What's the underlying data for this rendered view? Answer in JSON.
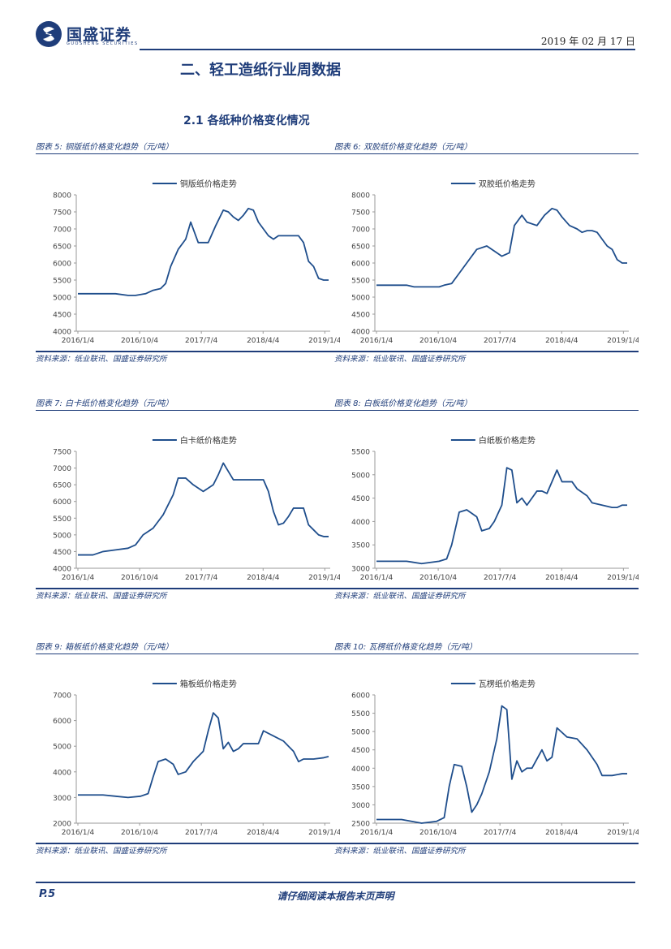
{
  "header": {
    "logo_text": "国盛证券",
    "logo_sub": "GUOSHENG SECURITIES",
    "date": "2019 年 02 月 17 日"
  },
  "section_title": "二、轻工造纸行业周数据",
  "sub_title": "2.1  各纸种价格变化情况",
  "charts": [
    {
      "caption": "图表 5:  铜版纸价格变化趋势（元/吨）",
      "source": "资料来源：纸业联讯、国盛证券研究所"
    },
    {
      "caption": "图表 6:  双胶纸价格变化趋势（元/吨）",
      "source": "资料来源：纸业联讯、国盛证券研究所"
    },
    {
      "caption": "图表 7:  白卡纸价格变化趋势（元/吨）",
      "source": "资料来源：纸业联讯、国盛证券研究所"
    },
    {
      "caption": "图表 8:  白板纸价格变化趋势（元/吨）",
      "source": "资料来源：纸业联讯、国盛证券研究所"
    },
    {
      "caption": "图表 9:  箱板纸价格变化趋势（元/吨）",
      "source": "资料来源：纸业联讯、国盛证券研究所"
    },
    {
      "caption": "图表 10:  瓦楞纸价格变化趋势（元/吨）",
      "source": "资料来源：纸业联讯、国盛证券研究所"
    }
  ],
  "chart_data": [
    {
      "type": "line",
      "title": "铜版纸价格走势",
      "ylim": [
        4000,
        8000
      ],
      "yticks": [
        4000,
        4500,
        5000,
        5500,
        6000,
        6500,
        7000,
        7500,
        8000
      ],
      "xticks": [
        "2016/1/4",
        "2016/10/4",
        "2017/7/4",
        "2018/4/4",
        "2019/1/4"
      ],
      "series": [
        {
          "name": "铜版纸价格走势",
          "x": [
            0,
            0.15,
            0.2,
            0.23,
            0.27,
            0.3,
            0.33,
            0.35,
            0.37,
            0.4,
            0.43,
            0.45,
            0.48,
            0.52,
            0.55,
            0.58,
            0.6,
            0.62,
            0.64,
            0.66,
            0.68,
            0.7,
            0.72,
            0.74,
            0.76,
            0.78,
            0.8,
            0.82,
            0.84,
            0.86,
            0.88,
            0.9,
            0.92,
            0.94,
            0.96,
            0.98,
            1.0
          ],
          "y": [
            5100,
            5100,
            5050,
            5050,
            5100,
            5200,
            5250,
            5400,
            5900,
            6400,
            6700,
            7200,
            6600,
            6600,
            7100,
            7550,
            7500,
            7350,
            7250,
            7400,
            7600,
            7550,
            7200,
            7000,
            6800,
            6700,
            6800,
            6800,
            6800,
            6800,
            6800,
            6600,
            6050,
            5900,
            5550,
            5500,
            5500
          ]
        }
      ]
    },
    {
      "type": "line",
      "title": "双胶纸价格走势",
      "ylim": [
        4000,
        8000
      ],
      "yticks": [
        4000,
        4500,
        5000,
        5500,
        6000,
        6500,
        7000,
        7500,
        8000
      ],
      "xticks": [
        "2016/1/4",
        "2016/10/4",
        "2017/7/4",
        "2018/4/4",
        "2019/1/4"
      ],
      "series": [
        {
          "name": "双胶纸价格走势",
          "x": [
            0,
            0.12,
            0.15,
            0.25,
            0.27,
            0.3,
            0.33,
            0.36,
            0.4,
            0.44,
            0.48,
            0.5,
            0.53,
            0.55,
            0.58,
            0.6,
            0.64,
            0.67,
            0.7,
            0.72,
            0.74,
            0.77,
            0.8,
            0.82,
            0.84,
            0.86,
            0.88,
            0.9,
            0.92,
            0.94,
            0.96,
            0.98,
            1.0
          ],
          "y": [
            5350,
            5350,
            5300,
            5300,
            5350,
            5400,
            5700,
            6000,
            6400,
            6500,
            6300,
            6200,
            6300,
            7100,
            7400,
            7200,
            7100,
            7400,
            7600,
            7550,
            7350,
            7100,
            7000,
            6900,
            6950,
            6950,
            6900,
            6700,
            6500,
            6400,
            6100,
            6000,
            6000
          ]
        }
      ]
    },
    {
      "type": "line",
      "title": "白卡纸价格走势",
      "ylim": [
        4000,
        7500
      ],
      "yticks": [
        4000,
        4500,
        5000,
        5500,
        6000,
        6500,
        7000,
        7500
      ],
      "xticks": [
        "2016/1/4",
        "2016/10/4",
        "2017/7/4",
        "2018/4/4",
        "2019/1/4"
      ],
      "series": [
        {
          "name": "白卡纸价格走势",
          "x": [
            0,
            0.06,
            0.1,
            0.15,
            0.2,
            0.23,
            0.26,
            0.3,
            0.34,
            0.38,
            0.4,
            0.43,
            0.46,
            0.5,
            0.54,
            0.56,
            0.58,
            0.6,
            0.62,
            0.66,
            0.7,
            0.74,
            0.76,
            0.78,
            0.8,
            0.82,
            0.84,
            0.86,
            0.88,
            0.9,
            0.92,
            0.94,
            0.96,
            0.98,
            1.0
          ],
          "y": [
            4400,
            4400,
            4500,
            4550,
            4600,
            4700,
            5000,
            5200,
            5600,
            6200,
            6700,
            6700,
            6500,
            6300,
            6500,
            6800,
            7150,
            6900,
            6650,
            6650,
            6650,
            6650,
            6300,
            5700,
            5300,
            5350,
            5550,
            5800,
            5800,
            5800,
            5300,
            5150,
            5000,
            4950,
            4950
          ]
        }
      ]
    },
    {
      "type": "line",
      "title": "白纸板价格走势",
      "ylim": [
        3000,
        5500
      ],
      "yticks": [
        3000,
        3500,
        4000,
        4500,
        5000,
        5500
      ],
      "xticks": [
        "2016/1/4",
        "2016/10/4",
        "2017/7/4",
        "2018/4/4",
        "2019/1/4"
      ],
      "series": [
        {
          "name": "白纸板价格走势",
          "x": [
            0,
            0.12,
            0.18,
            0.25,
            0.28,
            0.3,
            0.33,
            0.36,
            0.4,
            0.42,
            0.45,
            0.47,
            0.5,
            0.52,
            0.54,
            0.56,
            0.58,
            0.6,
            0.62,
            0.64,
            0.66,
            0.68,
            0.72,
            0.74,
            0.76,
            0.78,
            0.8,
            0.84,
            0.86,
            0.9,
            0.94,
            0.96,
            0.98,
            1.0
          ],
          "y": [
            3150,
            3150,
            3100,
            3150,
            3200,
            3500,
            4200,
            4250,
            4100,
            3800,
            3850,
            4000,
            4350,
            5150,
            5100,
            4400,
            4500,
            4350,
            4500,
            4650,
            4650,
            4600,
            5100,
            4850,
            4850,
            4850,
            4700,
            4550,
            4400,
            4350,
            4300,
            4300,
            4350,
            4350
          ]
        }
      ]
    },
    {
      "type": "line",
      "title": "箱板纸价格走势",
      "ylim": [
        2000,
        7000
      ],
      "yticks": [
        2000,
        3000,
        4000,
        5000,
        6000,
        7000
      ],
      "xticks": [
        "2016/1/4",
        "2016/10/4",
        "2017/7/4",
        "2018/4/4",
        "2019/1/4"
      ],
      "series": [
        {
          "name": "箱板纸价格走势",
          "x": [
            0,
            0.1,
            0.15,
            0.2,
            0.25,
            0.28,
            0.3,
            0.32,
            0.35,
            0.38,
            0.4,
            0.43,
            0.46,
            0.5,
            0.52,
            0.54,
            0.56,
            0.58,
            0.6,
            0.62,
            0.64,
            0.66,
            0.7,
            0.72,
            0.74,
            0.78,
            0.82,
            0.84,
            0.86,
            0.88,
            0.9,
            0.94,
            0.98,
            1.0
          ],
          "y": [
            3100,
            3100,
            3050,
            3000,
            3050,
            3150,
            3800,
            4400,
            4500,
            4300,
            3900,
            4000,
            4400,
            4800,
            5600,
            6300,
            6100,
            4900,
            5150,
            4800,
            4900,
            5100,
            5100,
            5100,
            5600,
            5400,
            5200,
            5000,
            4800,
            4400,
            4500,
            4500,
            4550,
            4600
          ]
        }
      ]
    },
    {
      "type": "line",
      "title": "瓦楞纸价格走势",
      "ylim": [
        2500,
        6000
      ],
      "yticks": [
        2500,
        3000,
        3500,
        4000,
        4500,
        5000,
        5500,
        6000
      ],
      "xticks": [
        "2016/1/4",
        "2016/10/4",
        "2017/7/4",
        "2018/4/4",
        "2019/1/4"
      ],
      "series": [
        {
          "name": "瓦楞纸价格走势",
          "x": [
            0,
            0.1,
            0.14,
            0.18,
            0.24,
            0.27,
            0.29,
            0.31,
            0.34,
            0.36,
            0.38,
            0.4,
            0.42,
            0.45,
            0.48,
            0.5,
            0.52,
            0.54,
            0.56,
            0.58,
            0.6,
            0.62,
            0.66,
            0.68,
            0.7,
            0.72,
            0.76,
            0.8,
            0.84,
            0.86,
            0.88,
            0.9,
            0.94,
            0.98,
            1.0
          ],
          "y": [
            2600,
            2600,
            2550,
            2500,
            2550,
            2650,
            3500,
            4100,
            4050,
            3500,
            2800,
            3000,
            3300,
            3900,
            4800,
            5700,
            5600,
            3700,
            4200,
            3900,
            4000,
            4000,
            4500,
            4200,
            4300,
            5100,
            4850,
            4800,
            4500,
            4300,
            4100,
            3800,
            3800,
            3850,
            3850
          ]
        }
      ]
    }
  ]
}
